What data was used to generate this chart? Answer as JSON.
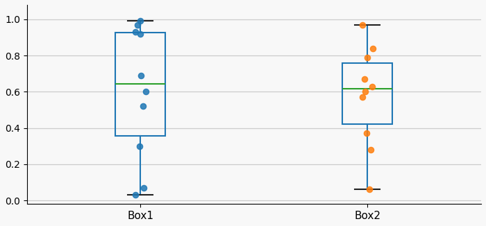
{
  "box1": [
    0.03,
    0.07,
    0.3,
    0.52,
    0.6,
    0.69,
    0.92,
    0.93,
    0.97,
    0.99
  ],
  "box2": [
    0.06,
    0.28,
    0.37,
    0.57,
    0.6,
    0.63,
    0.67,
    0.79,
    0.84,
    0.97
  ],
  "labels": [
    "Box1",
    "Box2"
  ],
  "box_color": "#1f77b4",
  "median_color": "#2ca02c",
  "scatter1_color": "#1f77b4",
  "scatter2_color": "#ff7f0e",
  "scatter_alpha": 0.85,
  "scatter_size": 35,
  "scatter_jitter": 0.025,
  "cap_color": "#222222",
  "ylim": [
    -0.02,
    1.08
  ],
  "grid_color": "#cccccc",
  "bg_color": "#f8f8f8",
  "figsize": [
    7.0,
    3.26
  ],
  "dpi": 100,
  "box_width": 0.22,
  "positions": [
    1,
    2
  ],
  "xlim": [
    0.5,
    2.5
  ]
}
